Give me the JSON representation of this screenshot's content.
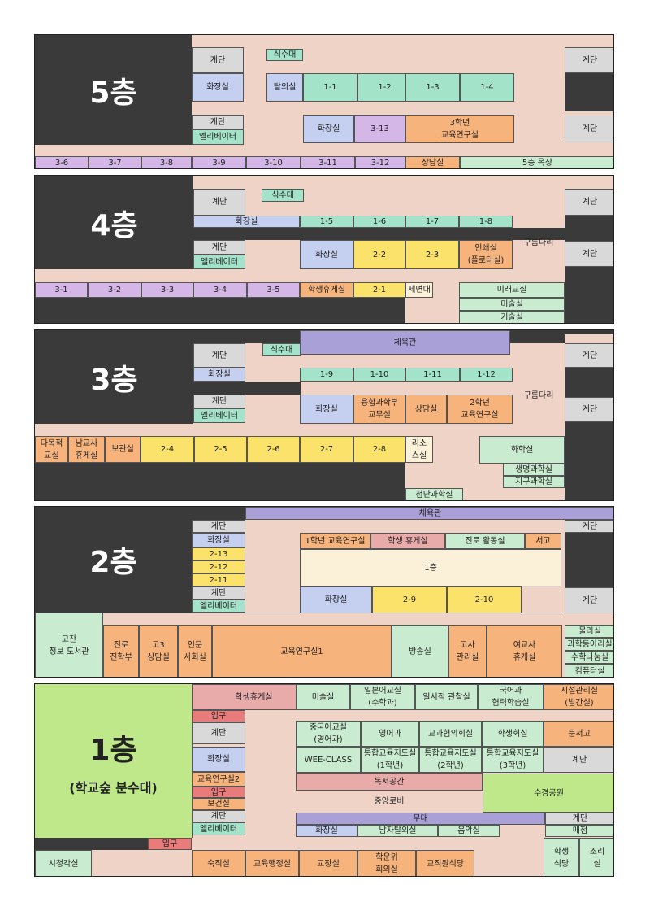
{
  "colors": {
    "floor_bg": "#efd3c7",
    "dark": "#3a3a3a",
    "gray": "#d9d9d9",
    "purple": "#d4b7e6",
    "blue": "#c5cff0",
    "mint": "#a3e3c9",
    "orange": "#f7b37c",
    "green": "#c9ecd0",
    "yellow": "#fbe36b",
    "pink": "#e9aaaa",
    "red": "#ea7b7b",
    "violet": "#a9a0d8",
    "cream": "#fbf0d8",
    "lightgreen": "#bfe88a"
  },
  "floors": [
    {
      "id": "5f",
      "title": "5층",
      "rooms": [
        {
          "n": "stairs",
          "t": "계단"
        },
        {
          "n": "dining-stand",
          "t": "식수대"
        },
        {
          "n": "stairs-right-1",
          "t": "계단"
        },
        {
          "n": "restroom",
          "t": "화장실"
        },
        {
          "n": "changing-room",
          "t": "탈의실"
        },
        {
          "n": "class-1-1",
          "t": "1-1"
        },
        {
          "n": "class-1-2",
          "t": "1-2"
        },
        {
          "n": "class-1-3",
          "t": "1-3"
        },
        {
          "n": "class-1-4",
          "t": "1-4"
        },
        {
          "n": "stairs-2",
          "t": "계단"
        },
        {
          "n": "elevator",
          "t": "엘리베이터"
        },
        {
          "n": "restroom-2",
          "t": "화장실"
        },
        {
          "n": "class-3-13",
          "t": "3-13"
        },
        {
          "n": "grade3-office",
          "t": "3학년\n교육연구실"
        },
        {
          "n": "stairs-right-2",
          "t": "계단"
        },
        {
          "n": "class-3-6",
          "t": "3-6"
        },
        {
          "n": "class-3-7",
          "t": "3-7"
        },
        {
          "n": "class-3-8",
          "t": "3-8"
        },
        {
          "n": "class-3-9",
          "t": "3-9"
        },
        {
          "n": "class-3-10",
          "t": "3-10"
        },
        {
          "n": "class-3-11",
          "t": "3-11"
        },
        {
          "n": "class-3-12",
          "t": "3-12"
        },
        {
          "n": "counseling",
          "t": "상담실"
        },
        {
          "n": "rooftop",
          "t": "5층 옥상"
        }
      ]
    },
    {
      "id": "4f",
      "title": "4층",
      "rooms": [
        {
          "n": "stairs",
          "t": "계단"
        },
        {
          "n": "dining-stand",
          "t": "식수대"
        },
        {
          "n": "stairs-right-1",
          "t": "계단"
        },
        {
          "n": "restroom",
          "t": "화장실"
        },
        {
          "n": "class-1-5",
          "t": "1-5"
        },
        {
          "n": "class-1-6",
          "t": "1-6"
        },
        {
          "n": "class-1-7",
          "t": "1-7"
        },
        {
          "n": "class-1-8",
          "t": "1-8"
        },
        {
          "n": "stairs-2",
          "t": "계단"
        },
        {
          "n": "elevator",
          "t": "엘리베이터"
        },
        {
          "n": "restroom-2",
          "t": "화장실"
        },
        {
          "n": "class-2-2",
          "t": "2-2"
        },
        {
          "n": "class-2-3",
          "t": "2-3"
        },
        {
          "n": "print-room",
          "t": "인쇄실\n(플로터실)"
        },
        {
          "n": "bridge",
          "t": "구름다리"
        },
        {
          "n": "stairs-right-2",
          "t": "계단"
        },
        {
          "n": "class-3-1",
          "t": "3-1"
        },
        {
          "n": "class-3-2",
          "t": "3-2"
        },
        {
          "n": "class-3-3",
          "t": "3-3"
        },
        {
          "n": "class-3-4",
          "t": "3-4"
        },
        {
          "n": "class-3-5",
          "t": "3-5"
        },
        {
          "n": "student-lounge",
          "t": "학생휴게실"
        },
        {
          "n": "class-2-1",
          "t": "2-1"
        },
        {
          "n": "washroom",
          "t": "세면대"
        },
        {
          "n": "future-class",
          "t": "미래교실"
        },
        {
          "n": "art-room",
          "t": "미술실"
        },
        {
          "n": "tech-room",
          "t": "기술실"
        }
      ]
    },
    {
      "id": "3f",
      "title": "3층",
      "rooms": [
        {
          "n": "gym",
          "t": "체육관"
        },
        {
          "n": "stairs",
          "t": "계단"
        },
        {
          "n": "dining-stand",
          "t": "식수대"
        },
        {
          "n": "stairs-right-1",
          "t": "계단"
        },
        {
          "n": "restroom",
          "t": "화장실"
        },
        {
          "n": "class-1-9",
          "t": "1-9"
        },
        {
          "n": "class-1-10",
          "t": "1-10"
        },
        {
          "n": "class-1-11",
          "t": "1-11"
        },
        {
          "n": "class-1-12",
          "t": "1-12"
        },
        {
          "n": "stairs-2",
          "t": "계단"
        },
        {
          "n": "elevator",
          "t": "엘리베이터"
        },
        {
          "n": "restroom-2",
          "t": "화장실"
        },
        {
          "n": "convergence-office",
          "t": "융합과학부\n교무실"
        },
        {
          "n": "counseling",
          "t": "상담실"
        },
        {
          "n": "grade2-office",
          "t": "2학년\n교육연구실"
        },
        {
          "n": "bridge",
          "t": "구름다리"
        },
        {
          "n": "stairs-right-2",
          "t": "계단"
        },
        {
          "n": "multipurpose",
          "t": "다목적\n교실"
        },
        {
          "n": "male-lounge",
          "t": "남교사\n휴게실"
        },
        {
          "n": "storage",
          "t": "보관실"
        },
        {
          "n": "class-2-4",
          "t": "2-4"
        },
        {
          "n": "class-2-5",
          "t": "2-5"
        },
        {
          "n": "class-2-6",
          "t": "2-6"
        },
        {
          "n": "class-2-7",
          "t": "2-7"
        },
        {
          "n": "class-2-8",
          "t": "2-8"
        },
        {
          "n": "resource-room",
          "t": "리소\n스실"
        },
        {
          "n": "chemistry",
          "t": "화학실"
        },
        {
          "n": "biology",
          "t": "생명과학실"
        },
        {
          "n": "earth-science",
          "t": "지구과학실"
        },
        {
          "n": "advanced-science",
          "t": "첨단과학실"
        }
      ]
    },
    {
      "id": "2f",
      "title": "2층",
      "rooms": [
        {
          "n": "gym",
          "t": "체육관"
        },
        {
          "n": "stairs",
          "t": "계단"
        },
        {
          "n": "stairs-right-1",
          "t": "계단"
        },
        {
          "n": "restroom",
          "t": "화장실"
        },
        {
          "n": "grade1-office",
          "t": "1학년 교육연구실"
        },
        {
          "n": "student-lounge",
          "t": "학생 휴게실"
        },
        {
          "n": "career-room",
          "t": "진로 활동실"
        },
        {
          "n": "bookstore",
          "t": "서고"
        },
        {
          "n": "class-2-13",
          "t": "2-13"
        },
        {
          "n": "class-2-12",
          "t": "2-12"
        },
        {
          "n": "class-2-11",
          "t": "2-11"
        },
        {
          "n": "first-floor-void",
          "t": "1층"
        },
        {
          "n": "stairs-2",
          "t": "계단"
        },
        {
          "n": "elevator",
          "t": "엘리베이터"
        },
        {
          "n": "restroom-2",
          "t": "화장실"
        },
        {
          "n": "class-2-9",
          "t": "2-9"
        },
        {
          "n": "class-2-10",
          "t": "2-10"
        },
        {
          "n": "stairs-right-2",
          "t": "계단"
        },
        {
          "n": "library",
          "t": "고잔\n정보 도서관"
        },
        {
          "n": "career-dept",
          "t": "진로\n진학부"
        },
        {
          "n": "senior-counseling",
          "t": "고3\n상담실"
        },
        {
          "n": "humanities",
          "t": "인문\n사회실"
        },
        {
          "n": "office-1",
          "t": "교육연구실1"
        },
        {
          "n": "broadcast",
          "t": "방송실"
        },
        {
          "n": "exam-room",
          "t": "고사\n관리실"
        },
        {
          "n": "female-lounge",
          "t": "여교사\n휴게실"
        },
        {
          "n": "physics",
          "t": "물리실"
        },
        {
          "n": "science-club",
          "t": "과학동아리실"
        },
        {
          "n": "math-share",
          "t": "수학나눔실"
        },
        {
          "n": "computer",
          "t": "컴퓨터실"
        }
      ]
    },
    {
      "id": "1f",
      "title": "1층",
      "subtitle": "(학교숲 분수대)",
      "rooms": [
        {
          "n": "student-lounge",
          "t": "학생휴게실"
        },
        {
          "n": "art-room",
          "t": "미술실"
        },
        {
          "n": "japanese-class",
          "t": "일본어교실\n(수학과)"
        },
        {
          "n": "temp-room",
          "t": "일시적 관찰실"
        },
        {
          "n": "korean-class",
          "t": "국어과\n협력학습실"
        },
        {
          "n": "facility",
          "t": "시설관리실\n(발간실)"
        },
        {
          "n": "entrance",
          "t": "입구"
        },
        {
          "n": "stairs",
          "t": "계단"
        },
        {
          "n": "chinese-class",
          "t": "중국어교실\n(영어과)"
        },
        {
          "n": "english",
          "t": "영어과"
        },
        {
          "n": "meeting",
          "t": "교과협의회실"
        },
        {
          "n": "student-council",
          "t": "학생회실"
        },
        {
          "n": "document",
          "t": "문서고"
        },
        {
          "n": "restroom",
          "t": "화장실"
        },
        {
          "n": "wee-class",
          "t": "WEE-CLASS"
        },
        {
          "n": "guidance-1",
          "t": "통합교육지도실\n(1학년)"
        },
        {
          "n": "guidance-2",
          "t": "통합교육지도실\n(2학년)"
        },
        {
          "n": "guidance-3",
          "t": "통합교육지도실\n(3학년)"
        },
        {
          "n": "stairs-right",
          "t": "계단"
        },
        {
          "n": "office-2",
          "t": "교육연구실2"
        },
        {
          "n": "entrance-2",
          "t": "입구"
        },
        {
          "n": "health",
          "t": "보건실"
        },
        {
          "n": "reading",
          "t": "독서공간"
        },
        {
          "n": "lobby",
          "t": "중앙로비"
        },
        {
          "n": "garden",
          "t": "수경공원"
        },
        {
          "n": "stairs-2",
          "t": "계단"
        },
        {
          "n": "elevator",
          "t": "엘리베이터"
        },
        {
          "n": "stage",
          "t": "무대"
        },
        {
          "n": "restroom-2",
          "t": "화장실"
        },
        {
          "n": "male-changing",
          "t": "남자탈의실"
        },
        {
          "n": "music",
          "t": "음악실"
        },
        {
          "n": "stairs-3",
          "t": "계단"
        },
        {
          "n": "store",
          "t": "매점"
        },
        {
          "n": "entrance-3",
          "t": "입구"
        },
        {
          "n": "av-room",
          "t": "시청각실"
        },
        {
          "n": "night-duty",
          "t": "숙직실"
        },
        {
          "n": "admin",
          "t": "교육행정실"
        },
        {
          "n": "principal",
          "t": "교장실"
        },
        {
          "n": "committee",
          "t": "학운위\n회의실"
        },
        {
          "n": "staff-cafeteria",
          "t": "교직원식당"
        },
        {
          "n": "student-cafeteria",
          "t": "학생\n식당"
        },
        {
          "n": "kitchen",
          "t": "조리\n실"
        }
      ]
    }
  ]
}
